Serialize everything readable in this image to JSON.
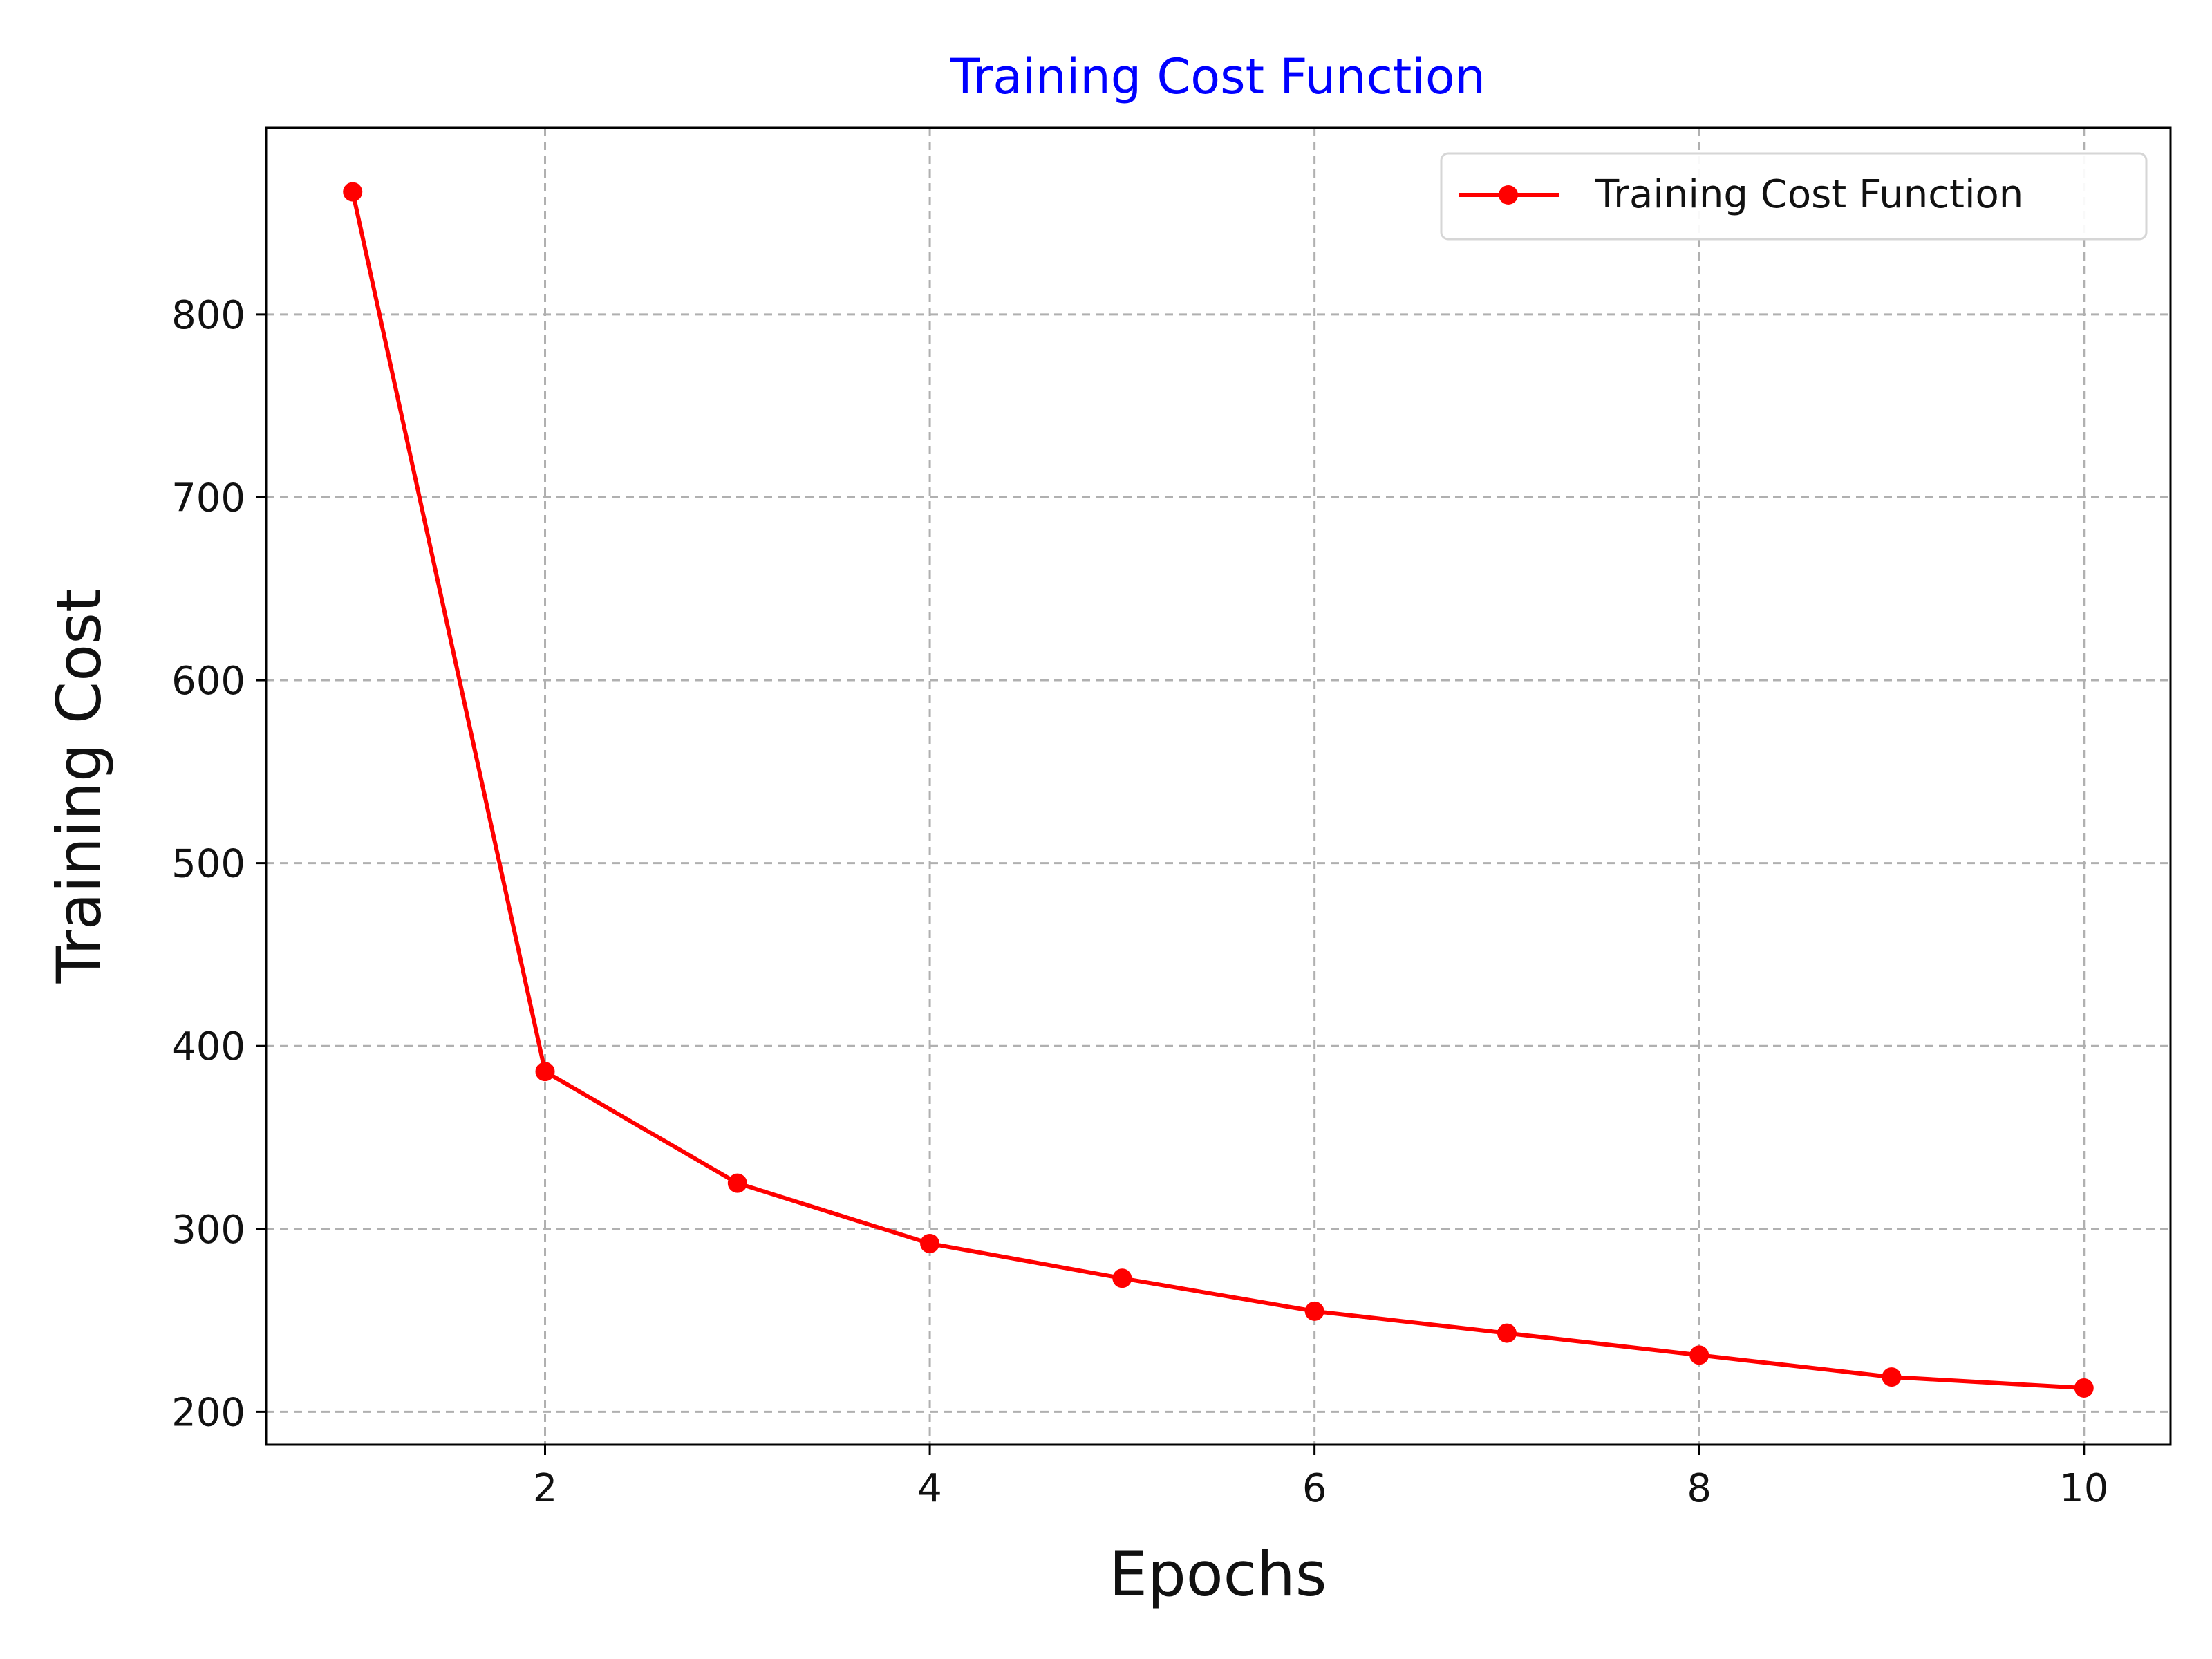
{
  "chart_data": {
    "type": "line",
    "title": "Training Cost Function",
    "xlabel": "Epochs",
    "ylabel": "Training Cost",
    "x": [
      1,
      2,
      3,
      4,
      5,
      6,
      7,
      8,
      9,
      10
    ],
    "series": [
      {
        "name": "Training Cost Function",
        "values": [
          867,
          386,
          325,
          292,
          273,
          255,
          243,
          231,
          219,
          213
        ],
        "color": "#ff0000",
        "marker": "circle"
      }
    ],
    "xlim": [
      0.55,
      10.45
    ],
    "ylim": [
      182,
      902
    ],
    "xticks": [
      2,
      4,
      6,
      8,
      10
    ],
    "yticks": [
      200,
      300,
      400,
      500,
      600,
      700,
      800
    ],
    "grid": true,
    "grid_style": "dashed",
    "legend_position": "top-right",
    "title_color": "#0000ff",
    "axis_color": "#000000",
    "grid_color": "#b0b0b0"
  }
}
